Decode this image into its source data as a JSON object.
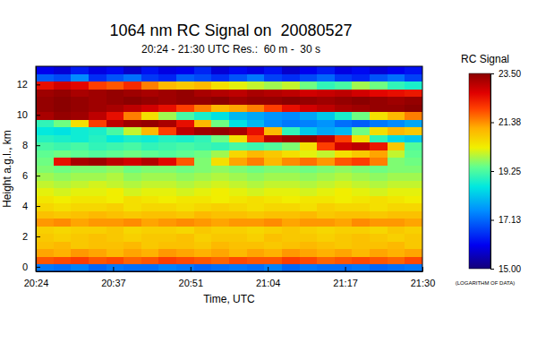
{
  "chart_data": {
    "type": "heatmap",
    "title": "1064 nm RC Signal on  20080527",
    "subtitle": "20:24 - 21:30 UTC Res.:  60 m -  30 s",
    "x_label": "Time, UTC",
    "y_label": "Height a.g.l., km",
    "xlim": [
      1224,
      1290
    ],
    "xticks": [
      {
        "value": 1224,
        "label": "20:24"
      },
      {
        "value": 1237.2,
        "label": "20:37"
      },
      {
        "value": 1250.4,
        "label": "20:51"
      },
      {
        "value": 1263.6,
        "label": "21:04"
      },
      {
        "value": 1276.8,
        "label": "21:17"
      },
      {
        "value": 1290,
        "label": "21:30"
      }
    ],
    "ylim": [
      -0.3,
      13.2
    ],
    "yticks": [
      0,
      2,
      4,
      6,
      8,
      10,
      12
    ],
    "colorbar": {
      "title": "RC Signal",
      "label": "(LOGARITHM OF DATA)",
      "lim": [
        15,
        23.5
      ],
      "ticks": [
        {
          "value": 15,
          "label": "15.00"
        },
        {
          "value": 17.125,
          "label": "17.13"
        },
        19.25,
        {
          "value": 21.375,
          "label": "21.38"
        },
        {
          "value": 23.5,
          "label": "23.50"
        }
      ]
    },
    "heatmap": {
      "x": [
        1225.5,
        1228.5,
        1231.5,
        1234.5,
        1237.5,
        1240.5,
        1243.5,
        1246.5,
        1249.5,
        1252.5,
        1255.5,
        1258.5,
        1261.5,
        1264.5,
        1267.5,
        1270.5,
        1273.5,
        1276.5,
        1279.5,
        1282.5,
        1285.5,
        1288.5
      ],
      "y": [
        -0.05,
        0.45,
        0.95,
        1.45,
        1.95,
        2.45,
        2.95,
        3.45,
        3.95,
        4.45,
        4.95,
        5.45,
        5.95,
        6.45,
        6.95,
        7.45,
        7.95,
        8.45,
        8.95,
        9.45,
        9.95,
        10.45,
        10.95,
        11.45,
        11.95,
        12.45,
        12.95
      ],
      "z": [
        [
          17.3,
          17.2,
          17.4,
          17.1,
          17.3,
          17.2,
          17.2,
          17.4,
          17.3,
          17.1,
          17.2,
          17.3,
          17.2,
          17.4,
          17.1,
          17.3,
          17.2,
          17.2,
          17.3,
          17.1,
          17.2,
          17.3
        ],
        [
          21.8,
          21.9,
          22.0,
          21.8,
          21.9,
          21.7,
          21.8,
          22.0,
          21.9,
          21.8,
          21.7,
          21.9,
          21.8,
          21.8,
          22.0,
          21.9,
          21.7,
          21.8,
          21.9,
          21.8,
          21.7,
          21.9
        ],
        [
          21.2,
          21.1,
          21.3,
          21.2,
          21.0,
          21.2,
          21.1,
          21.3,
          21.2,
          21.1,
          21.2,
          21.0,
          21.2,
          21.1,
          21.3,
          21.2,
          21.1,
          21.2,
          21.0,
          21.2,
          21.1,
          21.2
        ],
        [
          20.9,
          21.0,
          20.8,
          20.9,
          20.9,
          21.0,
          20.8,
          20.9,
          20.9,
          20.8,
          21.0,
          20.9,
          20.9,
          20.8,
          20.9,
          21.0,
          20.9,
          20.8,
          20.9,
          20.9,
          21.0,
          20.8
        ],
        [
          20.8,
          20.7,
          20.8,
          20.9,
          20.8,
          20.7,
          20.8,
          20.8,
          20.9,
          20.7,
          20.8,
          20.8,
          20.7,
          20.9,
          20.8,
          20.8,
          20.7,
          20.8,
          20.9,
          20.8,
          20.7,
          20.8
        ],
        [
          20.7,
          20.6,
          20.7,
          20.7,
          20.8,
          20.6,
          20.7,
          20.7,
          20.6,
          20.8,
          20.7,
          20.7,
          20.6,
          20.7,
          20.8,
          20.7,
          20.6,
          20.7,
          20.7,
          20.6,
          20.8,
          20.7
        ],
        [
          21.3,
          21.4,
          21.2,
          21.3,
          21.3,
          21.4,
          21.2,
          21.3,
          21.4,
          21.3,
          21.2,
          21.3,
          21.3,
          21.4,
          21.2,
          21.3,
          21.3,
          21.2,
          21.4,
          21.3,
          21.3,
          21.2
        ],
        [
          20.9,
          20.8,
          20.9,
          21.0,
          20.9,
          20.8,
          20.9,
          20.9,
          20.8,
          21.0,
          20.9,
          20.9,
          20.8,
          20.9,
          20.9,
          21.0,
          20.8,
          20.9,
          20.9,
          20.8,
          20.9,
          20.9
        ],
        [
          20.6,
          20.5,
          20.6,
          20.6,
          20.7,
          20.5,
          20.6,
          20.6,
          20.5,
          20.6,
          20.7,
          20.6,
          20.5,
          20.6,
          20.6,
          20.5,
          20.7,
          20.6,
          20.6,
          20.5,
          20.6,
          20.6
        ],
        [
          20.4,
          20.3,
          20.4,
          20.4,
          20.3,
          20.5,
          20.4,
          20.3,
          20.4,
          20.4,
          20.3,
          20.4,
          20.5,
          20.4,
          20.3,
          20.4,
          20.4,
          20.3,
          20.4,
          20.5,
          20.4,
          20.3
        ],
        [
          20.2,
          20.1,
          20.2,
          20.2,
          20.3,
          20.1,
          20.2,
          20.2,
          20.1,
          20.2,
          20.3,
          20.2,
          20.1,
          20.2,
          20.2,
          20.1,
          20.2,
          20.3,
          20.2,
          20.1,
          20.2,
          20.2
        ],
        [
          20.0,
          19.9,
          20.0,
          20.1,
          20.0,
          19.9,
          20.0,
          20.0,
          19.9,
          20.0,
          20.1,
          20.0,
          19.9,
          20.0,
          20.0,
          19.9,
          20.0,
          20.1,
          20.0,
          19.9,
          20.0,
          20.0
        ],
        [
          19.8,
          19.7,
          19.8,
          19.8,
          19.9,
          19.7,
          19.8,
          19.8,
          19.7,
          19.8,
          19.9,
          19.8,
          19.7,
          19.8,
          19.8,
          19.7,
          19.8,
          19.9,
          19.8,
          19.7,
          19.8,
          19.8
        ],
        [
          19.6,
          19.5,
          19.6,
          19.6,
          19.7,
          19.5,
          19.6,
          19.6,
          19.5,
          19.6,
          19.7,
          19.6,
          19.5,
          19.6,
          19.6,
          19.5,
          19.6,
          19.7,
          19.6,
          19.5,
          19.6,
          19.6
        ],
        [
          19.5,
          22.5,
          23.2,
          23.3,
          23.0,
          22.8,
          23.1,
          22.6,
          21.8,
          19.6,
          20.5,
          21.2,
          21.5,
          21.0,
          21.4,
          21.6,
          21.3,
          21.8,
          22.0,
          21.5,
          19.6,
          19.5
        ],
        [
          19.4,
          19.5,
          19.4,
          19.3,
          19.4,
          19.5,
          19.4,
          19.3,
          19.4,
          19.5,
          19.8,
          20.6,
          21.0,
          20.8,
          20.5,
          20.2,
          20.0,
          20.5,
          20.8,
          21.2,
          20.0,
          19.4
        ],
        [
          19.2,
          19.1,
          19.2,
          19.0,
          19.1,
          19.2,
          19.0,
          19.1,
          19.2,
          19.1,
          19.0,
          19.2,
          19.1,
          19.3,
          19.6,
          20.5,
          22.0,
          22.8,
          23.0,
          22.4,
          20.8,
          19.3
        ],
        [
          18.9,
          18.8,
          18.7,
          18.9,
          18.6,
          18.8,
          18.7,
          18.9,
          18.8,
          19.0,
          19.5,
          20.5,
          22.0,
          23.0,
          23.3,
          23.4,
          23.0,
          22.0,
          20.5,
          19.0,
          18.4,
          18.2
        ],
        [
          18.6,
          18.5,
          18.7,
          18.8,
          19.2,
          20.0,
          21.0,
          22.0,
          23.0,
          23.3,
          23.4,
          23.2,
          22.5,
          21.0,
          19.0,
          18.2,
          17.8,
          18.0,
          19.5,
          20.5,
          21.0,
          20.8
        ],
        [
          19.0,
          19.5,
          20.5,
          22.0,
          23.0,
          23.3,
          23.4,
          23.2,
          22.5,
          21.0,
          19.5,
          18.5,
          18.0,
          17.5,
          17.3,
          17.4,
          17.6,
          17.2,
          17.0,
          17.3,
          17.5,
          17.8
        ],
        [
          23.2,
          23.4,
          23.3,
          23.0,
          22.5,
          21.5,
          20.5,
          19.8,
          19.2,
          18.8,
          18.5,
          18.0,
          17.8,
          17.6,
          17.5,
          17.8,
          18.2,
          18.8,
          19.5,
          20.5,
          21.0,
          21.5
        ],
        [
          23.4,
          23.5,
          23.4,
          23.3,
          23.2,
          23.0,
          22.8,
          22.5,
          22.0,
          21.5,
          21.0,
          21.2,
          21.5,
          22.0,
          22.5,
          22.8,
          23.0,
          23.2,
          23.3,
          23.4,
          23.4,
          23.5
        ],
        [
          23.4,
          23.5,
          23.4,
          23.3,
          23.4,
          23.5,
          23.4,
          23.3,
          23.4,
          23.4,
          23.5,
          23.3,
          23.4,
          23.4,
          23.5,
          23.4,
          23.3,
          23.4,
          23.5,
          23.4,
          23.3,
          23.4
        ],
        [
          23.3,
          23.4,
          23.2,
          23.3,
          23.4,
          23.3,
          23.2,
          23.3,
          23.4,
          23.2,
          23.1,
          23.0,
          23.2,
          23.1,
          23.0,
          22.8,
          22.9,
          23.0,
          22.8,
          22.6,
          22.5,
          22.4
        ],
        [
          22.5,
          22.8,
          22.6,
          22.0,
          21.8,
          22.2,
          21.5,
          21.0,
          20.8,
          21.0,
          20.5,
          20.2,
          20.0,
          19.8,
          20.0,
          19.5,
          19.0,
          19.2,
          19.8,
          19.5,
          19.0,
          18.8
        ],
        [
          17.0,
          16.8,
          17.5,
          16.5,
          16.9,
          17.2,
          16.6,
          16.4,
          17.0,
          16.8,
          16.5,
          16.9,
          17.3,
          16.7,
          16.5,
          16.8,
          17.1,
          16.6,
          16.4,
          16.9,
          17.2,
          16.7
        ],
        [
          16.0,
          15.8,
          16.3,
          15.9,
          16.1,
          15.7,
          16.2,
          15.9,
          16.0,
          16.4,
          15.8,
          16.1,
          15.9,
          16.2,
          15.7,
          16.0,
          16.3,
          15.9,
          16.1,
          15.8,
          16.0,
          16.2
        ]
      ]
    }
  }
}
